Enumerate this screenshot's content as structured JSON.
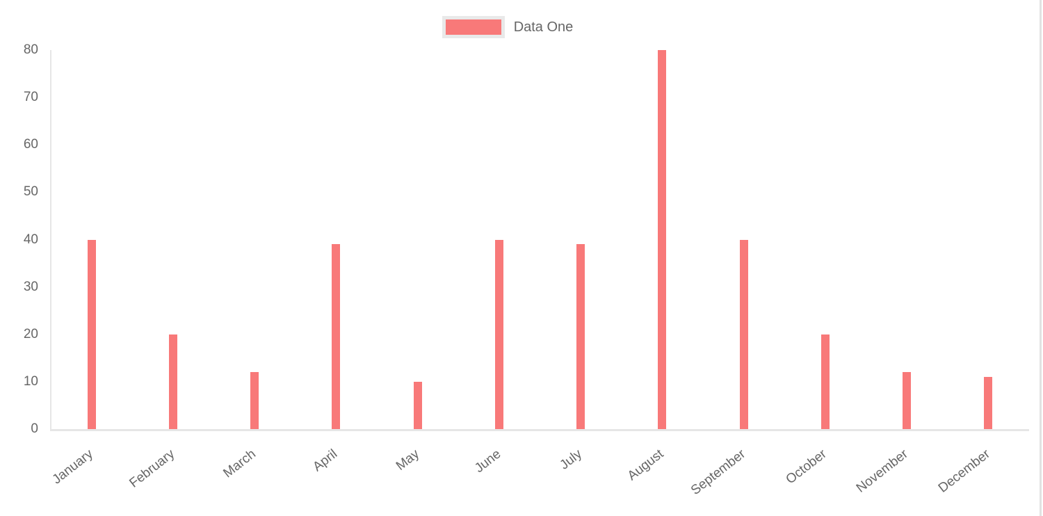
{
  "legend": {
    "label": "Data One",
    "swatch_color": "#f87979",
    "swatch_border_color": "#e9e9e9"
  },
  "chart_data": {
    "type": "bar",
    "title": "",
    "xlabel": "",
    "ylabel": "",
    "categories": [
      "January",
      "February",
      "March",
      "April",
      "May",
      "June",
      "July",
      "August",
      "September",
      "October",
      "November",
      "December"
    ],
    "series": [
      {
        "name": "Data One",
        "color": "#f87979",
        "values": [
          40,
          20,
          12,
          39,
          10,
          40,
          39,
          80,
          40,
          20,
          12,
          11
        ]
      }
    ],
    "ylim": [
      0,
      80
    ],
    "yticks": [
      0,
      10,
      20,
      30,
      40,
      50,
      60,
      70,
      80
    ],
    "grid": "off",
    "legend_position": "top-center",
    "x_tick_rotation_deg": -38
  },
  "colors": {
    "bar": "#f87979",
    "axis_line": "#e6e6e6",
    "tick_text": "#666666",
    "legend_text": "#666666",
    "right_edge_line": "#e2e2e2",
    "background": "#ffffff"
  }
}
